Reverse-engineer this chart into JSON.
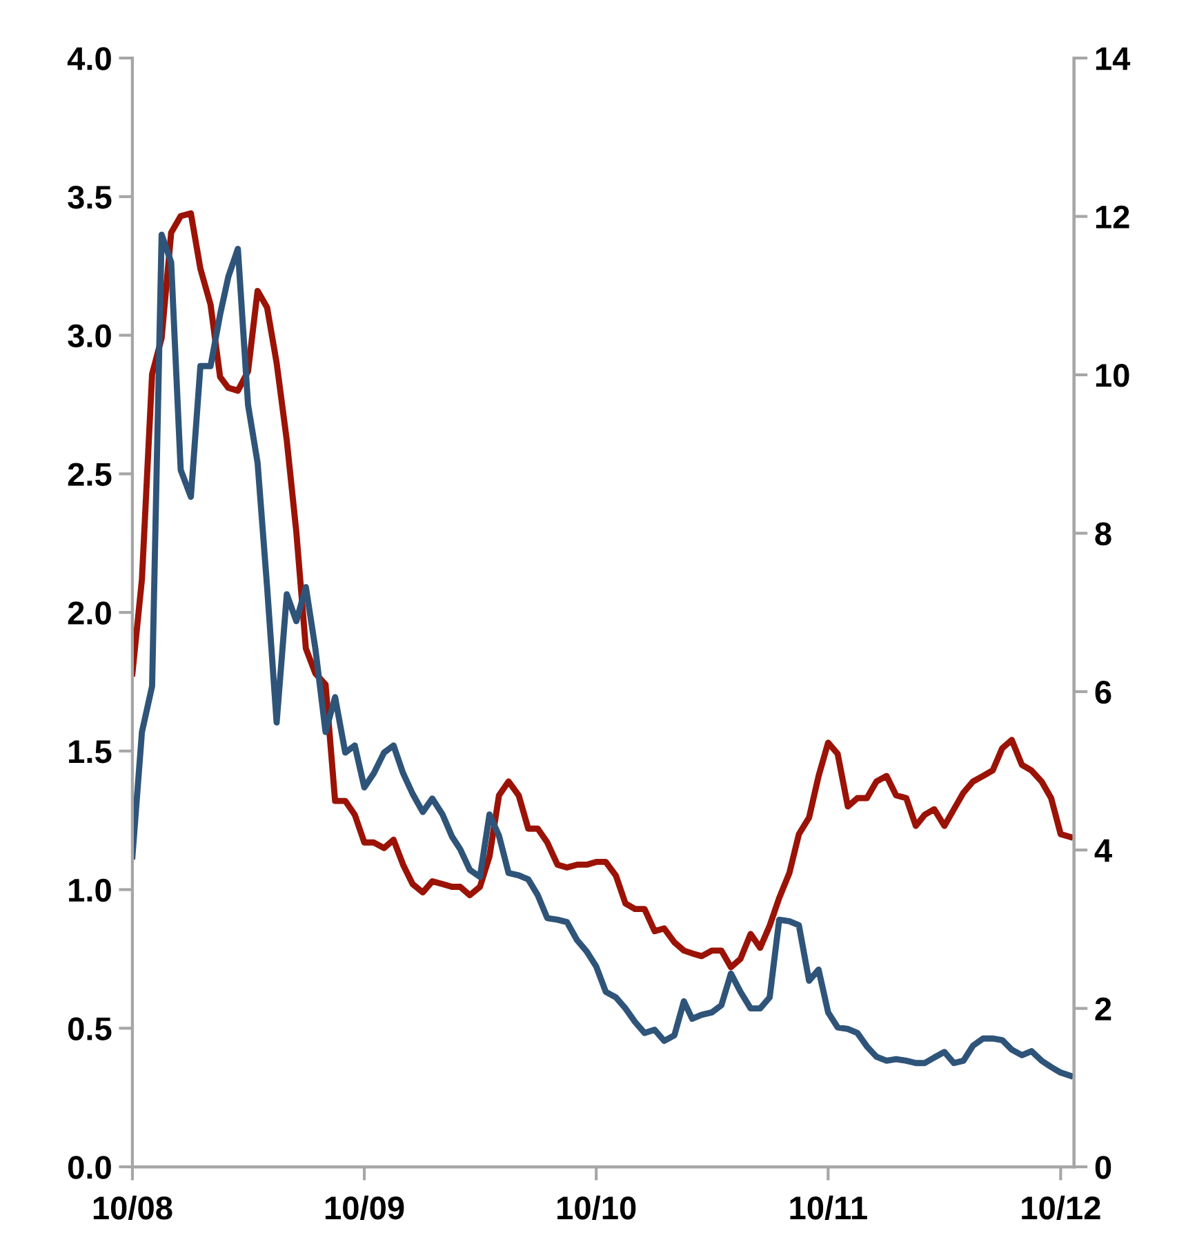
{
  "chart_data": {
    "type": "line",
    "line_style": "solid",
    "x": [
      "2008-10-01",
      "2008-10-16",
      "2008-11-01",
      "2008-11-16",
      "2008-12-01",
      "2008-12-16",
      "2009-01-01",
      "2009-01-16",
      "2009-02-01",
      "2009-02-16",
      "2009-03-01",
      "2009-03-16",
      "2009-04-01",
      "2009-04-16",
      "2009-05-01",
      "2009-05-16",
      "2009-06-01",
      "2009-06-16",
      "2009-07-01",
      "2009-07-16",
      "2009-08-01",
      "2009-08-16",
      "2009-09-01",
      "2009-09-16",
      "2009-10-01",
      "2009-10-16",
      "2009-11-01",
      "2009-11-16",
      "2009-12-01",
      "2009-12-16",
      "2010-01-01",
      "2010-01-16",
      "2010-02-01",
      "2010-02-16",
      "2010-03-01",
      "2010-03-16",
      "2010-04-01",
      "2010-04-16",
      "2010-05-01",
      "2010-05-16",
      "2010-06-01",
      "2010-06-16",
      "2010-07-01",
      "2010-07-16",
      "2010-08-01",
      "2010-08-16",
      "2010-09-01",
      "2010-09-16",
      "2010-10-01",
      "2010-10-16",
      "2010-11-01",
      "2010-11-16",
      "2010-12-01",
      "2010-12-16",
      "2011-01-01",
      "2011-01-16",
      "2011-02-01",
      "2011-02-16",
      "2011-03-01",
      "2011-03-16",
      "2011-04-01",
      "2011-04-16",
      "2011-05-01",
      "2011-05-16",
      "2011-06-01",
      "2011-06-16",
      "2011-07-01",
      "2011-07-16",
      "2011-08-01",
      "2011-08-16",
      "2011-09-01",
      "2011-09-16",
      "2011-10-01",
      "2011-10-16",
      "2011-11-01",
      "2011-11-16",
      "2011-12-01",
      "2011-12-16",
      "2012-01-01",
      "2012-01-16",
      "2012-02-01",
      "2012-02-16",
      "2012-03-01",
      "2012-03-16",
      "2012-04-01",
      "2012-04-16",
      "2012-05-01",
      "2012-05-16",
      "2012-06-01",
      "2012-06-16",
      "2012-07-01",
      "2012-07-16",
      "2012-08-01",
      "2012-08-16",
      "2012-09-01",
      "2012-09-16",
      "2012-10-01",
      "2012-10-16"
    ],
    "series": [
      {
        "color": "#9b1306",
        "axis": "y",
        "values": [
          1.78,
          2.12,
          2.86,
          2.99,
          3.37,
          3.43,
          3.44,
          3.24,
          3.11,
          2.85,
          2.81,
          2.8,
          2.87,
          3.16,
          3.1,
          2.9,
          2.62,
          2.29,
          1.87,
          1.78,
          1.74,
          1.32,
          1.32,
          1.27,
          1.17,
          1.17,
          1.15,
          1.18,
          1.09,
          1.02,
          0.99,
          1.03,
          1.02,
          1.01,
          1.01,
          0.98,
          1.01,
          1.12,
          1.34,
          1.39,
          1.34,
          1.22,
          1.22,
          1.17,
          1.09,
          1.08,
          1.09,
          1.09,
          1.1,
          1.1,
          1.05,
          0.95,
          0.93,
          0.93,
          0.85,
          0.86,
          0.81,
          0.78,
          0.77,
          0.76,
          0.78,
          0.78,
          0.72,
          0.75,
          0.84,
          0.79,
          0.87,
          0.97,
          1.06,
          1.2,
          1.26,
          1.41,
          1.53,
          1.49,
          1.3,
          1.33,
          1.33,
          1.39,
          1.41,
          1.34,
          1.33,
          1.23,
          1.27,
          1.29,
          1.23,
          1.29,
          1.35,
          1.39,
          1.41,
          1.43,
          1.51,
          1.54,
          1.45,
          1.43,
          1.39,
          1.33,
          1.2,
          1.19
        ]
      },
      {
        "color": "#2f5479",
        "axis": "y2",
        "values": [
          3.92,
          5.49,
          6.07,
          11.77,
          11.42,
          8.8,
          8.46,
          10.11,
          10.11,
          10.76,
          11.24,
          11.59,
          9.62,
          8.89,
          7.32,
          5.61,
          7.23,
          6.89,
          7.32,
          6.54,
          5.49,
          5.93,
          5.23,
          5.32,
          4.79,
          4.97,
          5.23,
          5.32,
          4.97,
          4.71,
          4.48,
          4.65,
          4.45,
          4.17,
          4.01,
          3.75,
          3.66,
          4.45,
          4.18,
          3.71,
          3.68,
          3.63,
          3.43,
          3.14,
          3.12,
          3.09,
          2.86,
          2.72,
          2.53,
          2.21,
          2.14,
          2.0,
          1.83,
          1.69,
          1.73,
          1.59,
          1.66,
          2.09,
          1.87,
          1.92,
          1.95,
          2.04,
          2.44,
          2.21,
          2.0,
          2.0,
          2.14,
          3.12,
          3.1,
          3.05,
          2.35,
          2.49,
          1.95,
          1.76,
          1.74,
          1.69,
          1.52,
          1.39,
          1.34,
          1.36,
          1.34,
          1.31,
          1.31,
          1.38,
          1.45,
          1.31,
          1.34,
          1.53,
          1.62,
          1.62,
          1.6,
          1.48,
          1.41,
          1.46,
          1.34,
          1.26,
          1.19,
          1.15
        ]
      }
    ],
    "xlim": [
      "2008-10-01",
      "2012-10-22"
    ],
    "xticks": [
      {
        "value": "2008-10-01",
        "label": "10/08"
      },
      {
        "value": "2009-10-01",
        "label": "10/09"
      },
      {
        "value": "2010-10-01",
        "label": "10/10"
      },
      {
        "value": "2011-10-01",
        "label": "10/11"
      },
      {
        "value": "2012-10-01",
        "label": "10/12"
      }
    ],
    "ylim": [
      0,
      4
    ],
    "yticks": [
      {
        "value": 0,
        "label": "0.0"
      },
      {
        "value": 0.5,
        "label": "0.5"
      },
      {
        "value": 1,
        "label": "1.0"
      },
      {
        "value": 1.5,
        "label": "1.5"
      },
      {
        "value": 2,
        "label": "2.0"
      },
      {
        "value": 2.5,
        "label": "2.5"
      },
      {
        "value": 3,
        "label": "3.0"
      },
      {
        "value": 3.5,
        "label": "3.5"
      },
      {
        "value": 4,
        "label": "4.0"
      }
    ],
    "y2lim": [
      0,
      14
    ],
    "y2ticks": [
      0,
      2,
      4,
      6,
      8,
      10,
      12,
      14
    ]
  }
}
